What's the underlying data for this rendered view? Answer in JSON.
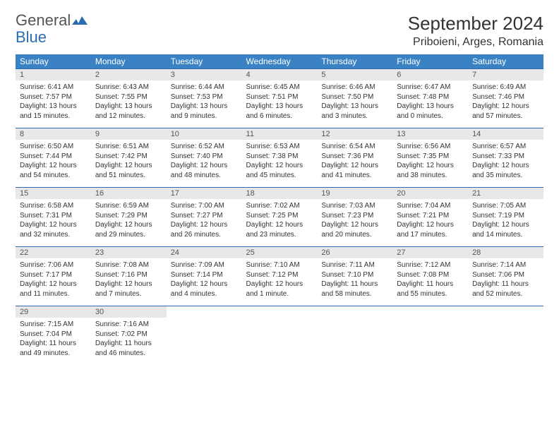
{
  "brand": {
    "name1": "General",
    "name2": "Blue"
  },
  "title": "September 2024",
  "location": "Priboieni, Arges, Romania",
  "colors": {
    "header_bg": "#3b82c4",
    "header_text": "#ffffff",
    "daynum_bg": "#e8e8e8",
    "border": "#2b6cb0",
    "text": "#333333"
  },
  "day_headers": [
    "Sunday",
    "Monday",
    "Tuesday",
    "Wednesday",
    "Thursday",
    "Friday",
    "Saturday"
  ],
  "weeks": [
    [
      {
        "n": "1",
        "sr": "6:41 AM",
        "ss": "7:57 PM",
        "dl": "13 hours and 15 minutes."
      },
      {
        "n": "2",
        "sr": "6:43 AM",
        "ss": "7:55 PM",
        "dl": "13 hours and 12 minutes."
      },
      {
        "n": "3",
        "sr": "6:44 AM",
        "ss": "7:53 PM",
        "dl": "13 hours and 9 minutes."
      },
      {
        "n": "4",
        "sr": "6:45 AM",
        "ss": "7:51 PM",
        "dl": "13 hours and 6 minutes."
      },
      {
        "n": "5",
        "sr": "6:46 AM",
        "ss": "7:50 PM",
        "dl": "13 hours and 3 minutes."
      },
      {
        "n": "6",
        "sr": "6:47 AM",
        "ss": "7:48 PM",
        "dl": "13 hours and 0 minutes."
      },
      {
        "n": "7",
        "sr": "6:49 AM",
        "ss": "7:46 PM",
        "dl": "12 hours and 57 minutes."
      }
    ],
    [
      {
        "n": "8",
        "sr": "6:50 AM",
        "ss": "7:44 PM",
        "dl": "12 hours and 54 minutes."
      },
      {
        "n": "9",
        "sr": "6:51 AM",
        "ss": "7:42 PM",
        "dl": "12 hours and 51 minutes."
      },
      {
        "n": "10",
        "sr": "6:52 AM",
        "ss": "7:40 PM",
        "dl": "12 hours and 48 minutes."
      },
      {
        "n": "11",
        "sr": "6:53 AM",
        "ss": "7:38 PM",
        "dl": "12 hours and 45 minutes."
      },
      {
        "n": "12",
        "sr": "6:54 AM",
        "ss": "7:36 PM",
        "dl": "12 hours and 41 minutes."
      },
      {
        "n": "13",
        "sr": "6:56 AM",
        "ss": "7:35 PM",
        "dl": "12 hours and 38 minutes."
      },
      {
        "n": "14",
        "sr": "6:57 AM",
        "ss": "7:33 PM",
        "dl": "12 hours and 35 minutes."
      }
    ],
    [
      {
        "n": "15",
        "sr": "6:58 AM",
        "ss": "7:31 PM",
        "dl": "12 hours and 32 minutes."
      },
      {
        "n": "16",
        "sr": "6:59 AM",
        "ss": "7:29 PM",
        "dl": "12 hours and 29 minutes."
      },
      {
        "n": "17",
        "sr": "7:00 AM",
        "ss": "7:27 PM",
        "dl": "12 hours and 26 minutes."
      },
      {
        "n": "18",
        "sr": "7:02 AM",
        "ss": "7:25 PM",
        "dl": "12 hours and 23 minutes."
      },
      {
        "n": "19",
        "sr": "7:03 AM",
        "ss": "7:23 PM",
        "dl": "12 hours and 20 minutes."
      },
      {
        "n": "20",
        "sr": "7:04 AM",
        "ss": "7:21 PM",
        "dl": "12 hours and 17 minutes."
      },
      {
        "n": "21",
        "sr": "7:05 AM",
        "ss": "7:19 PM",
        "dl": "12 hours and 14 minutes."
      }
    ],
    [
      {
        "n": "22",
        "sr": "7:06 AM",
        "ss": "7:17 PM",
        "dl": "12 hours and 11 minutes."
      },
      {
        "n": "23",
        "sr": "7:08 AM",
        "ss": "7:16 PM",
        "dl": "12 hours and 7 minutes."
      },
      {
        "n": "24",
        "sr": "7:09 AM",
        "ss": "7:14 PM",
        "dl": "12 hours and 4 minutes."
      },
      {
        "n": "25",
        "sr": "7:10 AM",
        "ss": "7:12 PM",
        "dl": "12 hours and 1 minute."
      },
      {
        "n": "26",
        "sr": "7:11 AM",
        "ss": "7:10 PM",
        "dl": "11 hours and 58 minutes."
      },
      {
        "n": "27",
        "sr": "7:12 AM",
        "ss": "7:08 PM",
        "dl": "11 hours and 55 minutes."
      },
      {
        "n": "28",
        "sr": "7:14 AM",
        "ss": "7:06 PM",
        "dl": "11 hours and 52 minutes."
      }
    ],
    [
      {
        "n": "29",
        "sr": "7:15 AM",
        "ss": "7:04 PM",
        "dl": "11 hours and 49 minutes."
      },
      {
        "n": "30",
        "sr": "7:16 AM",
        "ss": "7:02 PM",
        "dl": "11 hours and 46 minutes."
      },
      null,
      null,
      null,
      null,
      null
    ]
  ],
  "labels": {
    "sunrise": "Sunrise:",
    "sunset": "Sunset:",
    "daylight": "Daylight:"
  }
}
